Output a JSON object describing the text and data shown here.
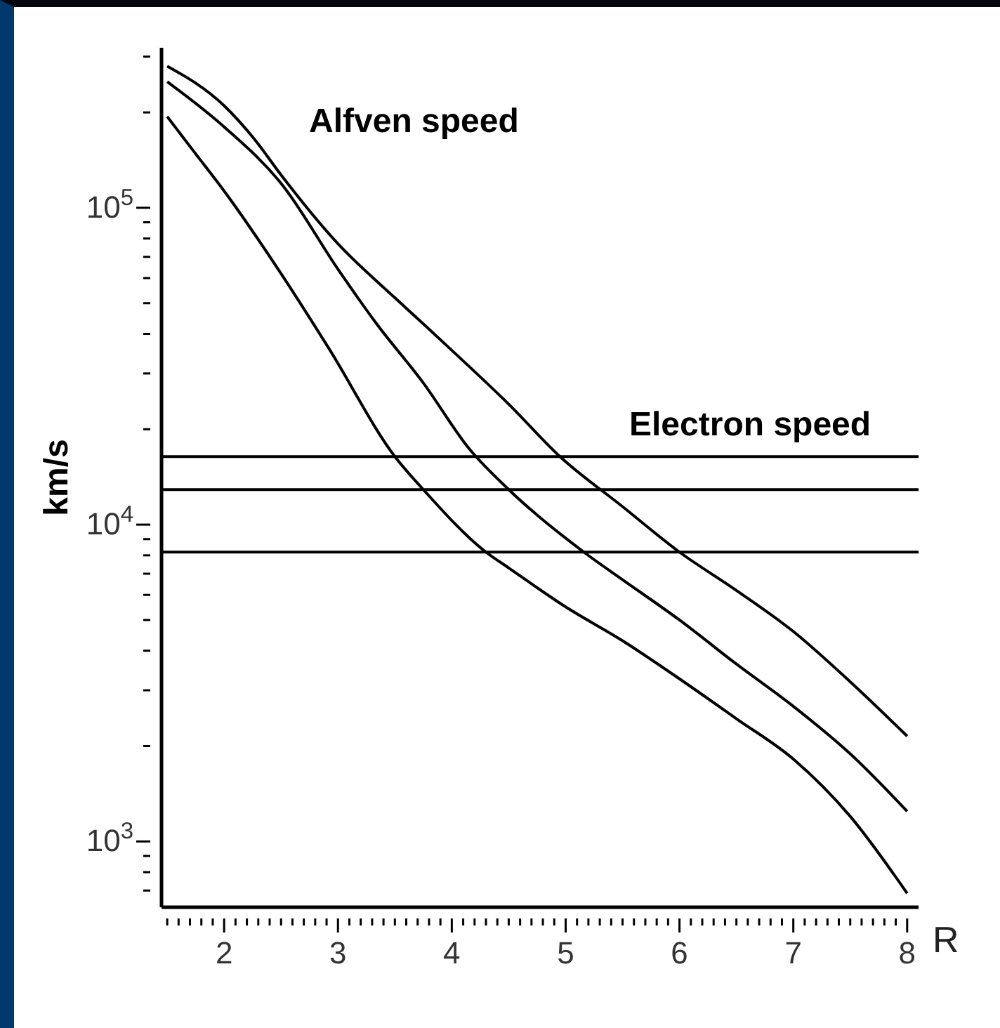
{
  "chart_data": {
    "type": "line",
    "xlabel": "R",
    "ylabel": "km/s",
    "annotations": [
      "Alfven speed",
      "Electron speed"
    ],
    "xlim": [
      1.45,
      8.1
    ],
    "xticks": [
      2,
      3,
      4,
      5,
      6,
      7,
      8,
      {
        "value": 1.5,
        "label": null
      },
      {
        "value": 1.6,
        "label": null
      },
      {
        "value": 1.7,
        "label": null
      },
      {
        "value": 1.8,
        "label": null
      },
      {
        "value": 1.9,
        "label": null
      },
      {
        "value": 2.1,
        "label": null
      },
      {
        "value": 2.2,
        "label": null
      },
      {
        "value": 2.3,
        "label": null
      },
      {
        "value": 2.4,
        "label": null
      },
      {
        "value": 2.5,
        "label": null
      },
      {
        "value": 2.6,
        "label": null
      },
      {
        "value": 2.7,
        "label": null
      },
      {
        "value": 2.8,
        "label": null
      },
      {
        "value": 2.9,
        "label": null
      },
      {
        "value": 3.1,
        "label": null
      },
      {
        "value": 3.2,
        "label": null
      },
      {
        "value": 3.3,
        "label": null
      },
      {
        "value": 3.4,
        "label": null
      },
      {
        "value": 3.5,
        "label": null
      },
      {
        "value": 3.6,
        "label": null
      },
      {
        "value": 3.7,
        "label": null
      },
      {
        "value": 3.8,
        "label": null
      },
      {
        "value": 3.9,
        "label": null
      },
      {
        "value": 4.1,
        "label": null
      },
      {
        "value": 4.2,
        "label": null
      },
      {
        "value": 4.3,
        "label": null
      },
      {
        "value": 4.4,
        "label": null
      },
      {
        "value": 4.5,
        "label": null
      },
      {
        "value": 4.6,
        "label": null
      },
      {
        "value": 4.7,
        "label": null
      },
      {
        "value": 4.8,
        "label": null
      },
      {
        "value": 4.9,
        "label": null
      },
      {
        "value": 5.1,
        "label": null
      },
      {
        "value": 5.2,
        "label": null
      },
      {
        "value": 5.3,
        "label": null
      },
      {
        "value": 5.4,
        "label": null
      },
      {
        "value": 5.5,
        "label": null
      },
      {
        "value": 5.6,
        "label": null
      },
      {
        "value": 5.7,
        "label": null
      },
      {
        "value": 5.8,
        "label": null
      },
      {
        "value": 5.9,
        "label": null
      },
      {
        "value": 6.1,
        "label": null
      },
      {
        "value": 6.2,
        "label": null
      },
      {
        "value": 6.3,
        "label": null
      },
      {
        "value": 6.4,
        "label": null
      },
      {
        "value": 6.5,
        "label": null
      },
      {
        "value": 6.6,
        "label": null
      },
      {
        "value": 6.7,
        "label": null
      },
      {
        "value": 6.8,
        "label": null
      },
      {
        "value": 6.9,
        "label": null
      },
      {
        "value": 7.1,
        "label": null
      },
      {
        "value": 7.2,
        "label": null
      },
      {
        "value": 7.3,
        "label": null
      },
      {
        "value": 7.4,
        "label": null
      },
      {
        "value": 7.5,
        "label": null
      },
      {
        "value": 7.6,
        "label": null
      },
      {
        "value": 7.7,
        "label": null
      },
      {
        "value": 7.8,
        "label": null
      },
      {
        "value": 7.9,
        "label": null
      }
    ],
    "log": "y",
    "ylim": [
      620,
      320000
    ],
    "yticks": [
      {
        "value": 1000,
        "label": "10$^{3}$"
      },
      {
        "value": 10000,
        "label": "10$^{4}$"
      },
      {
        "value": 100000,
        "label": "10$^{5}$"
      },
      {
        "value": 700,
        "label": null
      },
      {
        "value": 800,
        "label": null
      },
      {
        "value": 900,
        "label": null
      },
      {
        "value": 2000,
        "label": null
      },
      {
        "value": 3000,
        "label": null
      },
      {
        "value": 4000,
        "label": null
      },
      {
        "value": 5000,
        "label": null
      },
      {
        "value": 6000,
        "label": null
      },
      {
        "value": 7000,
        "label": null
      },
      {
        "value": 8000,
        "label": null
      },
      {
        "value": 9000,
        "label": null
      },
      {
        "value": 20000,
        "label": null
      },
      {
        "value": 30000,
        "label": null
      },
      {
        "value": 40000,
        "label": null
      },
      {
        "value": 50000,
        "label": null
      },
      {
        "value": 60000,
        "label": null
      },
      {
        "value": 70000,
        "label": null
      },
      {
        "value": 80000,
        "label": null
      },
      {
        "value": 90000,
        "label": null
      },
      {
        "value": 200000,
        "label": null
      },
      {
        "value": 300000,
        "label": null
      }
    ],
    "grid": false,
    "legend": false,
    "marker": "none",
    "line_style": "solid",
    "ref_lines": [
      {
        "axis": "y",
        "value": 16400,
        "color": "#000000"
      },
      {
        "axis": "y",
        "value": 12900,
        "color": "#000000"
      },
      {
        "axis": "y",
        "value": 8190,
        "color": "#000000"
      }
    ],
    "series": [
      {
        "color": "#000000",
        "x": [
          1.5,
          2.0,
          2.27,
          2.5,
          3.0,
          3.5,
          3.75,
          4.0,
          4.5,
          4.95,
          5.5,
          6.0,
          6.5,
          7.0,
          7.5,
          8.0
        ],
        "values": [
          280000,
          210000,
          164000,
          127000,
          77000,
          52000,
          43000,
          35500,
          24000,
          16400,
          11400,
          8190,
          6200,
          4600,
          3190,
          2150
        ]
      },
      {
        "color": "#000000",
        "x": [
          1.5,
          2.0,
          2.52,
          3.0,
          3.34,
          3.75,
          4.15,
          4.5,
          5.16,
          5.5,
          6.0,
          6.5,
          7.0,
          7.5,
          8.0
        ],
        "values": [
          250000,
          180000,
          117000,
          64000,
          43000,
          28000,
          17400,
          12900,
          8190,
          6700,
          5000,
          3630,
          2670,
          1890,
          1245
        ]
      },
      {
        "color": "#000000",
        "x": [
          1.5,
          1.75,
          2.0,
          2.5,
          2.92,
          3.5,
          3.75,
          4.3,
          4.5,
          5.0,
          5.5,
          6.0,
          6.5,
          7.0,
          7.5,
          8.0
        ],
        "values": [
          194000,
          148000,
          113000,
          62000,
          36000,
          16400,
          12900,
          8190,
          7300,
          5500,
          4300,
          3260,
          2440,
          1820,
          1200,
          686
        ]
      }
    ]
  }
}
